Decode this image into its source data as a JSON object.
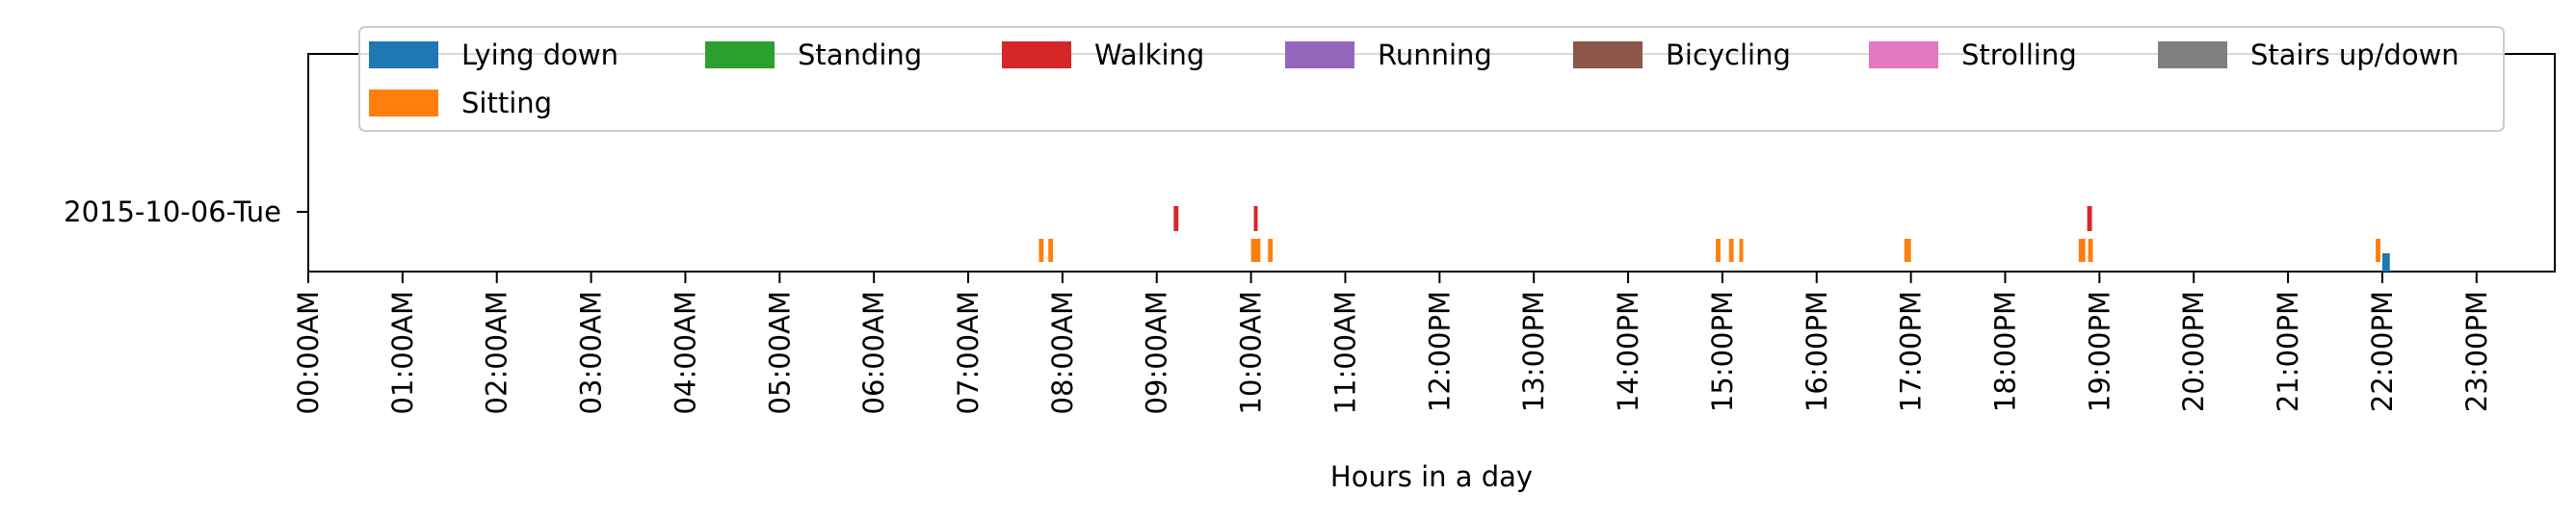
{
  "chart_data": {
    "type": "timeline",
    "xlabel": "Hours in a day",
    "xlim": [
      0,
      23.83
    ],
    "x_unit": "hours",
    "x_ticks": [
      "00:00AM",
      "01:00AM",
      "02:00AM",
      "03:00AM",
      "04:00AM",
      "05:00AM",
      "06:00AM",
      "07:00AM",
      "08:00AM",
      "09:00AM",
      "10:00AM",
      "11:00AM",
      "12:00PM",
      "13:00PM",
      "14:00PM",
      "15:00PM",
      "16:00PM",
      "17:00PM",
      "18:00PM",
      "19:00PM",
      "20:00PM",
      "21:00PM",
      "22:00PM",
      "23:00PM"
    ],
    "y_ticks": [
      "2015-10-06-Tue"
    ],
    "legend_position": "top",
    "series": [
      {
        "name": "Lying down",
        "color": "#1f77b4",
        "row": 0,
        "segments": [
          [
            22.0,
            22.08
          ]
        ]
      },
      {
        "name": "Standing",
        "color": "#2ca02c",
        "row": 1,
        "segments": []
      },
      {
        "name": "Walking",
        "color": "#d62728",
        "row": 2,
        "segments": [
          [
            9.18,
            9.23
          ],
          [
            10.03,
            10.07
          ],
          [
            18.87,
            18.92
          ]
        ]
      },
      {
        "name": "Running",
        "color": "#9467bd",
        "row": 3,
        "segments": []
      },
      {
        "name": "Bicycling",
        "color": "#8c564b",
        "row": 4,
        "segments": []
      },
      {
        "name": "Strolling",
        "color": "#e377c2",
        "row": 5,
        "segments": []
      },
      {
        "name": "Stairs up/down",
        "color": "#7f7f7f",
        "row": 6,
        "segments": []
      },
      {
        "name": "Sitting",
        "color": "#ff7f0e",
        "row": 1,
        "segments": [
          [
            7.75,
            7.8
          ],
          [
            7.85,
            7.9
          ],
          [
            10.0,
            10.1
          ],
          [
            10.18,
            10.23
          ],
          [
            14.93,
            14.98
          ],
          [
            15.07,
            15.12
          ],
          [
            15.18,
            15.22
          ],
          [
            16.93,
            17.0
          ],
          [
            18.78,
            18.85
          ],
          [
            18.88,
            18.93
          ],
          [
            21.93,
            21.98
          ]
        ]
      }
    ]
  }
}
